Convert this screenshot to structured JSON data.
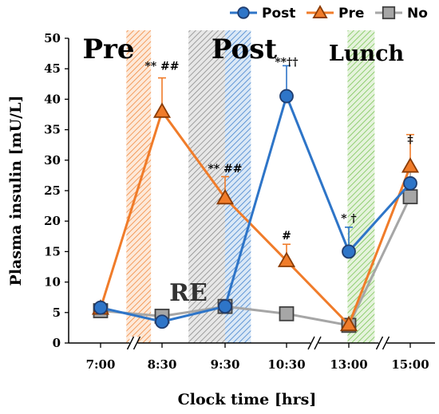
{
  "chart_data": {
    "type": "line",
    "title": "",
    "xlabel": "Clock time [hrs]",
    "ylabel": "Plasma insulin [mU/L]",
    "ylim": [
      0,
      50
    ],
    "yticks": [
      "0",
      "5",
      "10",
      "15",
      "20",
      "25",
      "30",
      "35",
      "40",
      "45",
      "50"
    ],
    "categories": [
      "7:00",
      "8:30",
      "9:30",
      "10:30",
      "13:00",
      "15:00"
    ],
    "axis_breaks_after": [
      "7:00",
      "10:30",
      "13:00"
    ],
    "grid": false,
    "legend_position": "top-right",
    "series": [
      {
        "name": "Post",
        "color": "#2e75c8",
        "marker": "circle",
        "values": [
          5.8,
          3.5,
          6.0,
          40.5,
          15.0,
          26.2
        ],
        "error": [
          0,
          0,
          0,
          5.0,
          4.0,
          0
        ]
      },
      {
        "name": "Pre",
        "color": "#f07c2a",
        "marker": "triangle",
        "values": [
          5.7,
          38.0,
          23.8,
          13.5,
          3.0,
          29.0
        ],
        "error": [
          0,
          5.5,
          3.5,
          2.7,
          0,
          5.2
        ]
      },
      {
        "name": "No",
        "color": "#a6a6a6",
        "marker": "square",
        "values": [
          5.3,
          4.4,
          6.0,
          4.8,
          2.9,
          24.0
        ],
        "error": [
          0,
          0,
          0,
          0,
          0,
          4.5
        ]
      }
    ],
    "bands": [
      {
        "label": "Pre",
        "color": "#f07c2a",
        "start": 0.42,
        "end": 0.82
      },
      {
        "label": "",
        "color": "#7f7f7f",
        "start": 1.42,
        "end": 2.0
      },
      {
        "label": "Post",
        "color": "#2e75c8",
        "start": 2.0,
        "end": 2.42
      },
      {
        "label": "Lunch",
        "color": "#6dbe45",
        "start": 3.98,
        "end": 4.42
      }
    ],
    "re_label": "RE",
    "annotations": [
      {
        "text": "** ##",
        "x": 1,
        "y": 44.8
      },
      {
        "text": "** ##",
        "x": 2,
        "y": 28.0
      },
      {
        "text": "**††",
        "x": 3,
        "y": 45.5
      },
      {
        "text": "#",
        "x": 3,
        "y": 17.0
      },
      {
        "text": "* †",
        "x": 4,
        "y": 19.8
      },
      {
        "text": "‡",
        "x": 5,
        "y": 32.8
      }
    ]
  }
}
